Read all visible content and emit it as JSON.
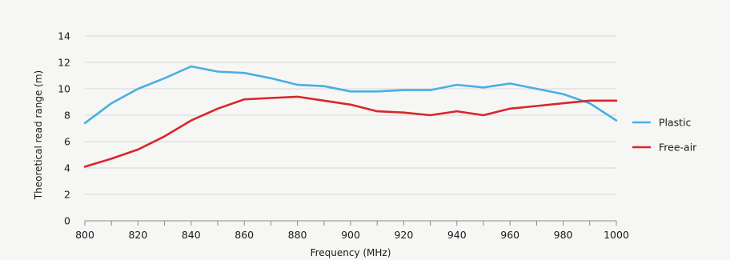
{
  "chart_data": {
    "type": "line",
    "title": "",
    "xlabel": "Frequency (MHz)",
    "ylabel": "Theoretical read range (m)",
    "xlim": [
      800,
      1000
    ],
    "ylim": [
      0,
      14
    ],
    "xticks": [
      800,
      820,
      840,
      860,
      880,
      900,
      920,
      940,
      960,
      980,
      1000
    ],
    "yticks": [
      0,
      2,
      4,
      6,
      8,
      10,
      12,
      14
    ],
    "grid": "horizontal",
    "legend_position": "right",
    "x": [
      800,
      810,
      820,
      830,
      840,
      850,
      860,
      870,
      880,
      890,
      900,
      910,
      920,
      930,
      940,
      950,
      960,
      970,
      980,
      990,
      1000
    ],
    "series": [
      {
        "name": "Plastic",
        "color": "#4aaee2",
        "values": [
          7.4,
          8.9,
          10.0,
          10.8,
          11.7,
          11.3,
          11.2,
          10.8,
          10.3,
          10.2,
          9.8,
          9.8,
          9.9,
          9.9,
          10.3,
          10.1,
          10.4,
          10.0,
          9.6,
          8.9,
          7.6
        ]
      },
      {
        "name": "Free-air",
        "color": "#d9262b",
        "values": [
          4.1,
          4.7,
          5.4,
          6.4,
          7.6,
          8.5,
          9.2,
          9.3,
          9.4,
          9.1,
          8.8,
          8.3,
          8.2,
          8.0,
          8.3,
          8.0,
          8.5,
          8.7,
          8.9,
          9.1,
          9.1
        ]
      }
    ]
  }
}
